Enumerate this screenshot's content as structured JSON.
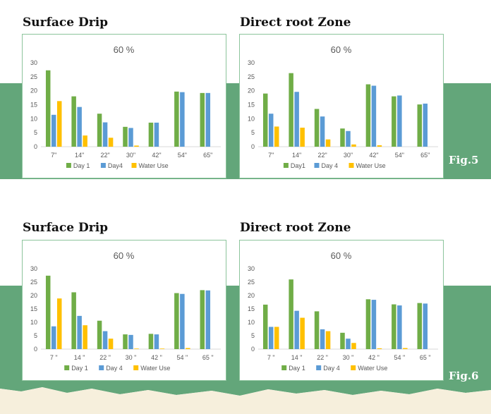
{
  "fig_labels": [
    "Fig.5",
    "Fig.6"
  ],
  "colors": {
    "day1": "#70ad47",
    "day4": "#5b9bd5",
    "water": "#ffc000",
    "band": "#63a67a"
  },
  "chart_data": [
    {
      "type": "bar",
      "panel_title": "Surface Drip",
      "title": "60 %",
      "categories": [
        "7\"",
        "14\"",
        "22\"",
        "30\"",
        "42\"",
        "54\"",
        "65\""
      ],
      "series": [
        {
          "name": "Day 1",
          "values": [
            27.3,
            18,
            11.8,
            7.1,
            8.6,
            19.7,
            19.2
          ]
        },
        {
          "name": "Day4",
          "values": [
            11.4,
            14.2,
            8.7,
            6.7,
            8.6,
            19.5,
            19.2
          ]
        },
        {
          "name": "Water Use",
          "values": [
            16.3,
            4,
            3.2,
            0.4,
            0,
            0,
            0
          ]
        }
      ],
      "ylim": [
        0,
        30
      ],
      "yticks": [
        0,
        5,
        10,
        15,
        20,
        25,
        30
      ],
      "legend": "bottom",
      "grid": false
    },
    {
      "type": "bar",
      "panel_title": "Direct root Zone",
      "title": "60 %",
      "categories": [
        "7\"",
        "14\"",
        "22\"",
        "30\"",
        "42\"",
        "54\"",
        "65\""
      ],
      "series": [
        {
          "name": "Day1",
          "values": [
            19,
            26.3,
            13.5,
            6.5,
            22.3,
            18,
            15.1
          ]
        },
        {
          "name": "Day 4",
          "values": [
            11.8,
            19.6,
            10.8,
            5.6,
            21.8,
            18.3,
            15.4
          ]
        },
        {
          "name": "Water Use",
          "values": [
            7.2,
            6.8,
            2.6,
            0.8,
            0.5,
            0,
            0
          ]
        }
      ],
      "ylim": [
        0,
        30
      ],
      "yticks": [
        0,
        5,
        10,
        15,
        20,
        25,
        30
      ],
      "legend": "bottom",
      "grid": false
    },
    {
      "type": "bar",
      "panel_title": "Surface Drip",
      "title": "60 %",
      "categories": [
        "7 \"",
        "14 \"",
        "22 \"",
        "30 \"",
        "42 \"",
        "54 \"",
        "65 \""
      ],
      "series": [
        {
          "name": "Day 1",
          "values": [
            27.4,
            21.2,
            10.6,
            5.5,
            5.7,
            20.9,
            22
          ]
        },
        {
          "name": "Day 4",
          "values": [
            8.5,
            12.4,
            6.7,
            5.3,
            5.5,
            20.6,
            21.9
          ]
        },
        {
          "name": "Water Use",
          "values": [
            18.9,
            8.9,
            3.9,
            0.2,
            0.2,
            0.4,
            0
          ]
        }
      ],
      "ylim": [
        0,
        30
      ],
      "yticks": [
        0,
        5,
        10,
        15,
        20,
        25,
        30
      ],
      "legend": "bottom",
      "grid": false
    },
    {
      "type": "bar",
      "panel_title": "Direct root Zone",
      "title": "60 %",
      "categories": [
        "7 \"",
        "14 \"",
        "22 \"",
        "30 \"",
        "42 \"",
        "54 \"",
        "65 \""
      ],
      "series": [
        {
          "name": "Day 1",
          "values": [
            16.6,
            26,
            14.1,
            6.1,
            18.6,
            16.7,
            17.2
          ]
        },
        {
          "name": "Day 4",
          "values": [
            8.3,
            14.3,
            7.4,
            3.9,
            18.4,
            16.3,
            17
          ]
        },
        {
          "name": "Water Use",
          "values": [
            8.3,
            11.7,
            6.7,
            2.3,
            0.3,
            0.4,
            0
          ]
        }
      ],
      "ylim": [
        0,
        30
      ],
      "yticks": [
        0,
        5,
        10,
        15,
        20,
        25,
        30
      ],
      "legend": "bottom",
      "grid": false
    }
  ]
}
